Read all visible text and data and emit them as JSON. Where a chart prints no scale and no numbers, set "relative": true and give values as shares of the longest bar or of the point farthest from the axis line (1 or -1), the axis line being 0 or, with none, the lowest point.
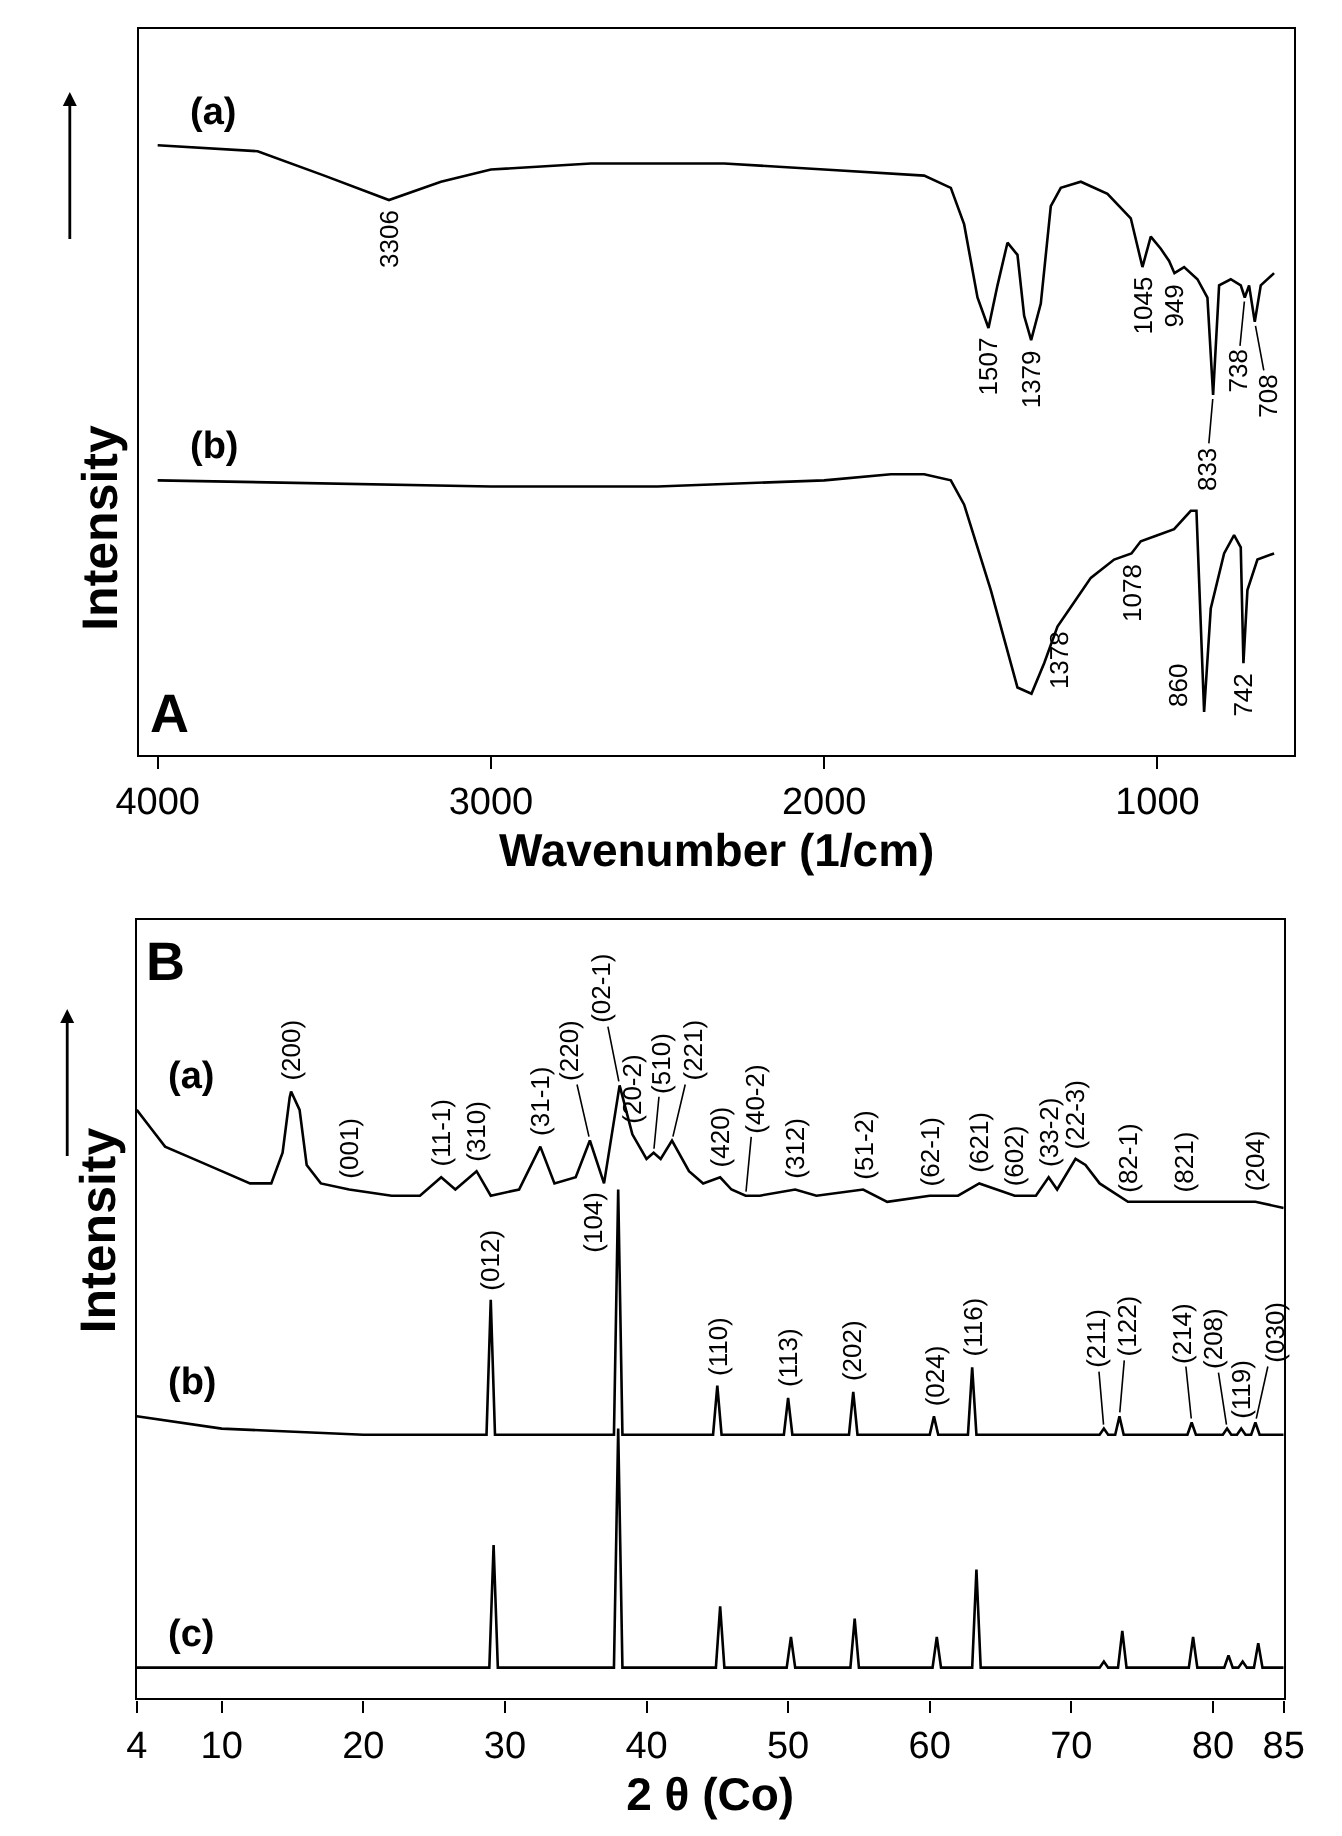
{
  "chart_data": [
    {
      "type": "line",
      "relative": true,
      "xlabel": "Wavenumber (1/cm)",
      "ylabel": "Intensity",
      "xlim": [
        4055,
        590
      ],
      "xticks": [
        4000,
        3000,
        2000,
        1000
      ],
      "tick_labels": "x",
      "legend": false,
      "marker": "none",
      "line_style": "solid",
      "series": [
        {
          "name": "(a)",
          "color": "#000000",
          "x": [
            4000,
            3700,
            3500,
            3306,
            3150,
            3000,
            2700,
            2300,
            2000,
            1700,
            1620,
            1580,
            1540,
            1507,
            1480,
            1450,
            1420,
            1400,
            1379,
            1350,
            1320,
            1290,
            1230,
            1150,
            1080,
            1045,
            1020,
            990,
            965,
            949,
            920,
            880,
            850,
            833,
            815,
            780,
            750,
            738,
            725,
            708,
            690,
            650
          ],
          "values": [
            1.0,
            0.99,
            0.95,
            0.91,
            0.94,
            0.96,
            0.97,
            0.97,
            0.96,
            0.95,
            0.93,
            0.87,
            0.75,
            0.7,
            0.77,
            0.84,
            0.82,
            0.72,
            0.68,
            0.74,
            0.9,
            0.93,
            0.94,
            0.92,
            0.88,
            0.8,
            0.85,
            0.83,
            0.81,
            0.79,
            0.8,
            0.78,
            0.75,
            0.59,
            0.77,
            0.78,
            0.77,
            0.75,
            0.77,
            0.71,
            0.77,
            0.79
          ]
        },
        {
          "name": "(b)",
          "color": "#000000",
          "x": [
            4000,
            3000,
            2500,
            2000,
            1800,
            1700,
            1620,
            1580,
            1500,
            1420,
            1378,
            1340,
            1300,
            1250,
            1200,
            1130,
            1078,
            1050,
            1000,
            950,
            900,
            883,
            860,
            840,
            800,
            770,
            750,
            742,
            730,
            700,
            650
          ],
          "values": [
            0.45,
            0.44,
            0.44,
            0.45,
            0.46,
            0.46,
            0.45,
            0.41,
            0.27,
            0.11,
            0.1,
            0.15,
            0.21,
            0.25,
            0.29,
            0.32,
            0.33,
            0.35,
            0.36,
            0.37,
            0.4,
            0.4,
            0.07,
            0.24,
            0.33,
            0.36,
            0.34,
            0.15,
            0.27,
            0.32,
            0.33
          ]
        }
      ],
      "annotations": [
        "A",
        {
          "text": "3306",
          "x": 3306,
          "y": 0.91
        },
        {
          "text": "1507",
          "x": 1507,
          "y": 0.7
        },
        {
          "text": "1379",
          "x": 1379,
          "y": 0.68
        },
        {
          "text": "1045",
          "x": 1045,
          "y": 0.8
        },
        {
          "text": "949",
          "x": 949,
          "y": 0.79
        },
        {
          "text": "833",
          "x": 833,
          "y": 0.59
        },
        {
          "text": "738",
          "x": 738,
          "y": 0.75
        },
        {
          "text": "708",
          "x": 708,
          "y": 0.71
        },
        {
          "text": "1378",
          "x": 1378,
          "y": 0.1
        },
        {
          "text": "1078",
          "x": 1078,
          "y": 0.33
        },
        {
          "text": "860",
          "x": 860,
          "y": 0.07
        },
        {
          "text": "742",
          "x": 742,
          "y": 0.15
        }
      ]
    },
    {
      "type": "line",
      "relative": true,
      "xlabel": "2 θ (Co)",
      "ylabel": "Intensity",
      "xlim": [
        4,
        85
      ],
      "xticks": [
        4,
        10,
        20,
        30,
        40,
        50,
        60,
        70,
        80,
        85
      ],
      "tick_labels": "x",
      "legend": false,
      "marker": "none",
      "line_style": "solid",
      "series": [
        {
          "name": "(a)",
          "color": "#000000",
          "x": [
            4,
            5,
            6,
            8,
            10,
            12,
            13.5,
            14.3,
            14.8,
            14.9,
            15.5,
            16,
            17,
            19,
            22,
            24,
            25.5,
            26.5,
            28,
            29,
            31,
            32.5,
            33.5,
            35,
            36,
            37,
            38.1,
            39,
            40,
            40.5,
            41,
            41.8,
            43,
            44,
            45.2,
            46,
            47,
            48,
            50.5,
            52,
            55.3,
            57,
            60,
            62,
            63.5,
            66,
            67.5,
            68.4,
            69,
            70.3,
            71,
            72,
            74,
            77,
            78,
            80,
            83,
            85
          ],
          "values": [
            0.96,
            0.93,
            0.9,
            0.88,
            0.86,
            0.84,
            0.84,
            0.89,
            0.98,
            0.99,
            0.96,
            0.87,
            0.84,
            0.83,
            0.82,
            0.82,
            0.85,
            0.83,
            0.86,
            0.82,
            0.83,
            0.9,
            0.84,
            0.85,
            0.91,
            0.84,
            1.0,
            0.92,
            0.88,
            0.89,
            0.88,
            0.91,
            0.86,
            0.84,
            0.85,
            0.83,
            0.82,
            0.82,
            0.83,
            0.82,
            0.83,
            0.81,
            0.82,
            0.82,
            0.84,
            0.82,
            0.82,
            0.85,
            0.83,
            0.88,
            0.87,
            0.84,
            0.81,
            0.81,
            0.81,
            0.81,
            0.81,
            0.8
          ]
        },
        {
          "name": "(b)",
          "color": "#000000",
          "x": [
            4,
            10,
            20,
            28.7,
            29.0,
            29.3,
            37.7,
            38.0,
            38.3,
            44.7,
            45.0,
            45.3,
            49.7,
            50.0,
            50.3,
            54.3,
            54.6,
            54.9,
            60.0,
            60.3,
            60.6,
            62.7,
            63.0,
            63.3,
            72.0,
            72.3,
            72.6,
            73.1,
            73.4,
            73.7,
            78.2,
            78.5,
            78.8,
            80.7,
            81.0,
            81.3,
            81.7,
            82.0,
            82.3,
            82.7,
            83.0,
            83.3,
            85
          ],
          "values": [
            0.46,
            0.44,
            0.43,
            0.43,
            0.65,
            0.43,
            0.43,
            0.83,
            0.43,
            0.43,
            0.51,
            0.43,
            0.43,
            0.49,
            0.43,
            0.43,
            0.5,
            0.43,
            0.43,
            0.46,
            0.43,
            0.43,
            0.54,
            0.43,
            0.43,
            0.44,
            0.43,
            0.43,
            0.46,
            0.43,
            0.43,
            0.45,
            0.43,
            0.43,
            0.44,
            0.43,
            0.43,
            0.44,
            0.43,
            0.43,
            0.45,
            0.43,
            0.43
          ]
        },
        {
          "name": "(c)",
          "color": "#000000",
          "x": [
            4,
            28.9,
            29.2,
            29.5,
            37.7,
            38.0,
            38.3,
            44.9,
            45.2,
            45.5,
            49.9,
            50.2,
            50.5,
            54.4,
            54.7,
            55.0,
            60.2,
            60.5,
            60.8,
            63.0,
            63.3,
            63.6,
            72.0,
            72.3,
            72.6,
            73.3,
            73.6,
            73.9,
            78.3,
            78.6,
            78.9,
            80.8,
            81.1,
            81.4,
            81.8,
            82.1,
            82.4,
            82.9,
            83.2,
            83.5,
            85
          ],
          "values": [
            0.05,
            0.05,
            0.25,
            0.05,
            0.05,
            0.44,
            0.05,
            0.05,
            0.15,
            0.05,
            0.05,
            0.1,
            0.05,
            0.05,
            0.13,
            0.05,
            0.05,
            0.1,
            0.05,
            0.05,
            0.21,
            0.05,
            0.05,
            0.06,
            0.05,
            0.05,
            0.11,
            0.05,
            0.05,
            0.1,
            0.05,
            0.05,
            0.07,
            0.05,
            0.05,
            0.06,
            0.05,
            0.05,
            0.09,
            0.05,
            0.05
          ]
        }
      ],
      "annotations": [
        "B",
        {
          "text": "(200)",
          "x": 14.9,
          "y": 0.99
        },
        {
          "text": "(001)",
          "x": 19,
          "y": 0.83
        },
        {
          "text": "(11-1)",
          "x": 25.5,
          "y": 0.85
        },
        {
          "text": "(310)",
          "x": 28,
          "y": 0.86
        },
        {
          "text": "(31-1)",
          "x": 32.5,
          "y": 0.9
        },
        {
          "text": "(220)",
          "x": 36,
          "y": 0.91
        },
        {
          "text": "(02-1)",
          "x": 38.1,
          "y": 1.0
        },
        {
          "text": "(20-2)",
          "x": 39,
          "y": 0.92
        },
        {
          "text": "(510)",
          "x": 40.5,
          "y": 0.89
        },
        {
          "text": "(221)",
          "x": 41.8,
          "y": 0.91
        },
        {
          "text": "(420)",
          "x": 45.2,
          "y": 0.85
        },
        {
          "text": "(40-2)",
          "x": 47,
          "y": 0.82
        },
        {
          "text": "(312)",
          "x": 50.5,
          "y": 0.83
        },
        {
          "text": "(51-2)",
          "x": 55.3,
          "y": 0.83
        },
        {
          "text": "(62-1)",
          "x": 60,
          "y": 0.82
        },
        {
          "text": "(621)",
          "x": 63.5,
          "y": 0.84
        },
        {
          "text": "(602)",
          "x": 66,
          "y": 0.82
        },
        {
          "text": "(33-2)",
          "x": 68.4,
          "y": 0.85
        },
        {
          "text": "(22-3)",
          "x": 70.3,
          "y": 0.88
        },
        {
          "text": "(82-1)",
          "x": 74,
          "y": 0.81
        },
        {
          "text": "(821)",
          "x": 78,
          "y": 0.81
        },
        {
          "text": "(204)",
          "x": 83,
          "y": 0.81
        },
        {
          "text": "(012)",
          "x": 29.0,
          "y": 0.65
        },
        {
          "text": "(104)",
          "x": 38.0,
          "y": 0.83
        },
        {
          "text": "(110)",
          "x": 45.0,
          "y": 0.51
        },
        {
          "text": "(113)",
          "x": 50.0,
          "y": 0.49
        },
        {
          "text": "(202)",
          "x": 54.6,
          "y": 0.5
        },
        {
          "text": "(024)",
          "x": 60.3,
          "y": 0.46
        },
        {
          "text": "(116)",
          "x": 63.0,
          "y": 0.54
        },
        {
          "text": "(211)",
          "x": 72.3,
          "y": 0.44
        },
        {
          "text": "(122)",
          "x": 73.4,
          "y": 0.46
        },
        {
          "text": "(214)",
          "x": 78.5,
          "y": 0.45
        },
        {
          "text": "(208)",
          "x": 81.0,
          "y": 0.44
        },
        {
          "text": "(119)",
          "x": 82.0,
          "y": 0.44
        },
        {
          "text": "(030)",
          "x": 83.0,
          "y": 0.45
        }
      ]
    }
  ]
}
